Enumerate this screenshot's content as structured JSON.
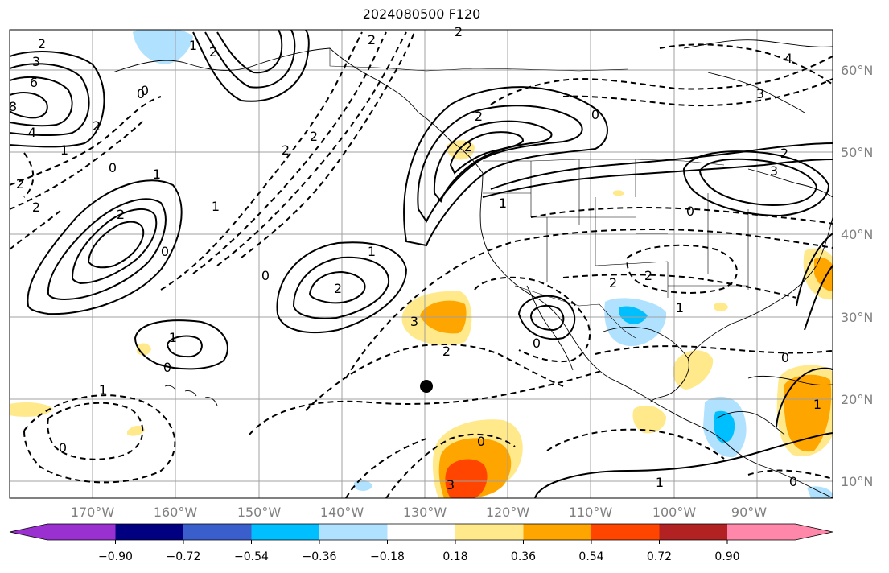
{
  "map": {
    "title": "2024080500 F120",
    "lon_ticks": [
      "170°W",
      "160°W",
      "150°W",
      "140°W",
      "130°W",
      "120°W",
      "110°W",
      "100°W",
      "90°W"
    ],
    "lat_ticks": [
      "60°N",
      "50°N",
      "40°N",
      "30°N",
      "20°N",
      "10°N"
    ],
    "colorbar": {
      "tick_labels": [
        "−0.90",
        "−0.72",
        "−0.54",
        "−0.36",
        "−0.18",
        "0.18",
        "0.36",
        "0.54",
        "0.72",
        "0.90"
      ],
      "colors": [
        "#9b30d0",
        "#000080",
        "#3a5fcd",
        "#00bfff",
        "#b0e2ff",
        "#ffffff",
        "#ffe98a",
        "#ffa500",
        "#ff4500",
        "#b22222",
        "#ff88aa"
      ]
    },
    "contour_labels": [
      "2",
      "3",
      "6",
      "4",
      "8",
      "2",
      "0",
      "1",
      "2",
      "2",
      "2",
      "1",
      "0",
      "2",
      "2",
      "2",
      "1",
      "0",
      "2",
      "1",
      "0",
      "2",
      "2",
      "0",
      "1",
      "0",
      "1",
      "1",
      "0",
      "2",
      "3",
      "1",
      "2",
      "4",
      "0",
      "3",
      "2",
      "2",
      "3",
      "2",
      "2",
      "0",
      "0",
      "1",
      "0",
      "1",
      "0",
      "1",
      "3",
      "0"
    ],
    "storm_marker": "black dot"
  }
}
